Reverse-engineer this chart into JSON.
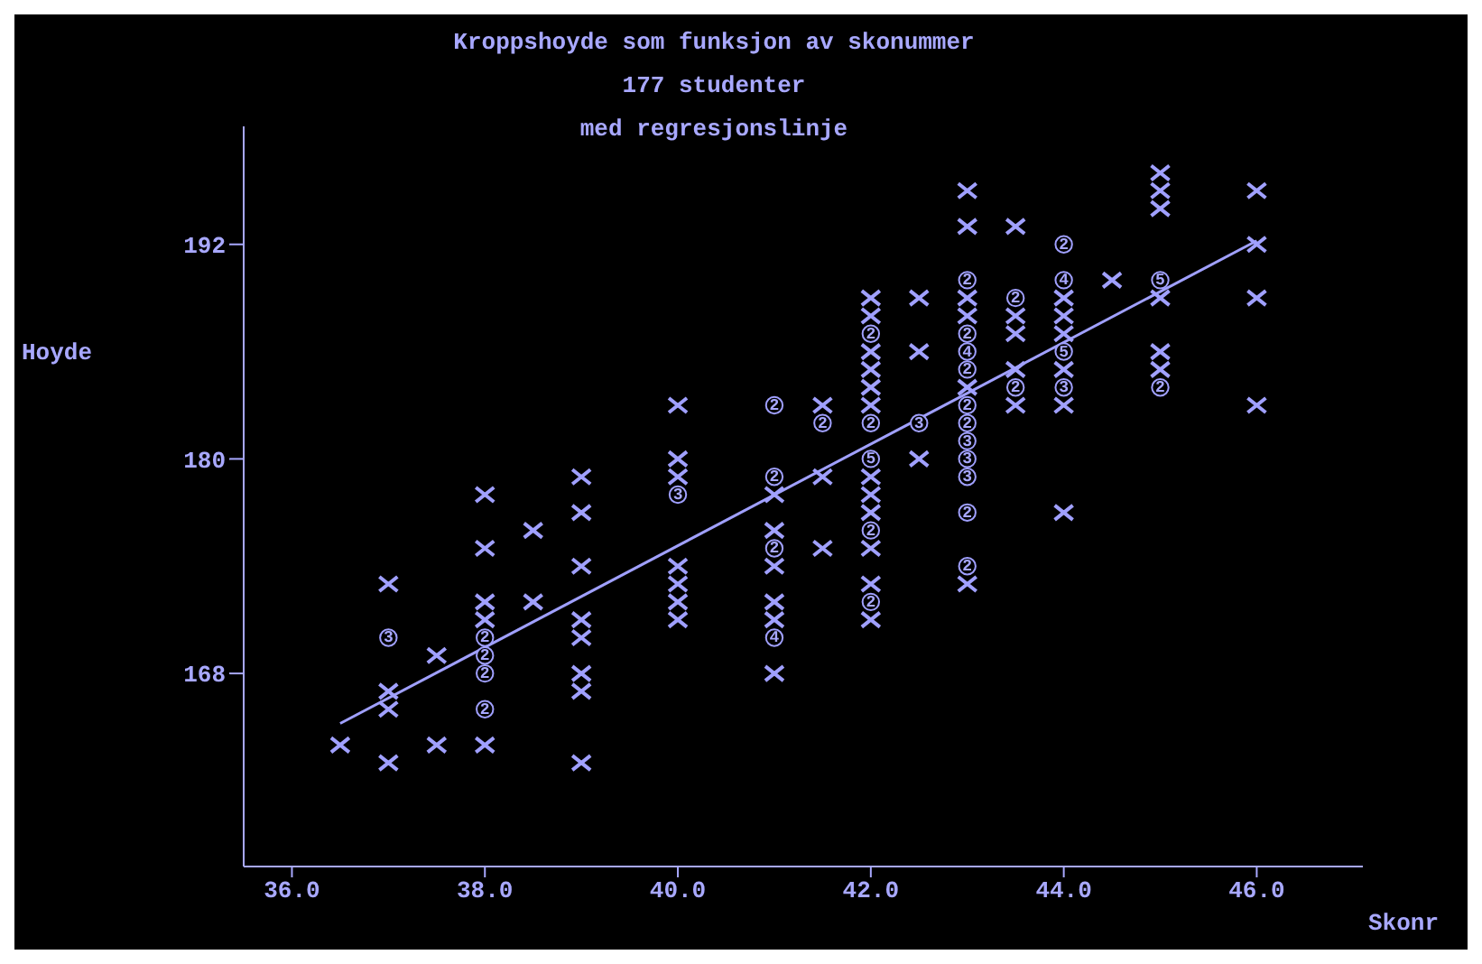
{
  "chart_data": {
    "type": "scatter",
    "title": "Kroppshoyde som funksjon av skonummer",
    "subtitle": "177 studenter",
    "xlabel": "Skonr",
    "ylabel": "Hoyde",
    "xlim": [
      35.5,
      47.1
    ],
    "ylim": [
      157.2,
      198.6
    ],
    "xticks": [
      {
        "value": 36,
        "label": "36.0"
      },
      {
        "value": 38,
        "label": "38.0"
      },
      {
        "value": 40,
        "label": "40.0"
      },
      {
        "value": 42,
        "label": "42.0"
      },
      {
        "value": 44,
        "label": "44.0"
      },
      {
        "value": 46,
        "label": "46.0"
      }
    ],
    "yticks": [
      168,
      180,
      192
    ],
    "grid": false,
    "legend": false,
    "annotations": [
      "med regresjonslinje",
      {
        "text": "3",
        "x": 37,
        "y": 170
      },
      {
        "text": "2",
        "x": 38,
        "y": 170
      },
      {
        "text": "2",
        "x": 38,
        "y": 169
      },
      {
        "text": "2",
        "x": 38,
        "y": 168
      },
      {
        "text": "2",
        "x": 38,
        "y": 166
      },
      {
        "text": "3",
        "x": 40,
        "y": 178
      },
      {
        "text": "2",
        "x": 41,
        "y": 183
      },
      {
        "text": "2",
        "x": 41,
        "y": 179
      },
      {
        "text": "2",
        "x": 41,
        "y": 175
      },
      {
        "text": "4",
        "x": 41,
        "y": 170
      },
      {
        "text": "2",
        "x": 41.5,
        "y": 182
      },
      {
        "text": "2",
        "x": 42,
        "y": 187
      },
      {
        "text": "2",
        "x": 42,
        "y": 182
      },
      {
        "text": "5",
        "x": 42,
        "y": 180
      },
      {
        "text": "2",
        "x": 42,
        "y": 176
      },
      {
        "text": "2",
        "x": 42,
        "y": 172
      },
      {
        "text": "3",
        "x": 42.5,
        "y": 182
      },
      {
        "text": "2",
        "x": 43,
        "y": 190
      },
      {
        "text": "2",
        "x": 43,
        "y": 187
      },
      {
        "text": "4",
        "x": 43,
        "y": 186
      },
      {
        "text": "2",
        "x": 43,
        "y": 185
      },
      {
        "text": "2",
        "x": 43,
        "y": 183
      },
      {
        "text": "2",
        "x": 43,
        "y": 182
      },
      {
        "text": "3",
        "x": 43,
        "y": 181
      },
      {
        "text": "3",
        "x": 43,
        "y": 180
      },
      {
        "text": "3",
        "x": 43,
        "y": 179
      },
      {
        "text": "2",
        "x": 43,
        "y": 177
      },
      {
        "text": "2",
        "x": 43,
        "y": 174
      },
      {
        "text": "2",
        "x": 43.5,
        "y": 189
      },
      {
        "text": "2",
        "x": 43.5,
        "y": 184
      },
      {
        "text": "2",
        "x": 44,
        "y": 192
      },
      {
        "text": "4",
        "x": 44,
        "y": 190
      },
      {
        "text": "5",
        "x": 44,
        "y": 186
      },
      {
        "text": "3",
        "x": 44,
        "y": 184
      },
      {
        "text": "5",
        "x": 45,
        "y": 190
      },
      {
        "text": "2",
        "x": 45,
        "y": 184
      }
    ],
    "series": [
      {
        "marker": "cross",
        "color": "#a0a0ff",
        "x": [
          36.5,
          37,
          37,
          37,
          37,
          37.5,
          37.5,
          38,
          38,
          38,
          38,
          38,
          38.5,
          38.5,
          39,
          39,
          39,
          39,
          39,
          39,
          39,
          39,
          40,
          40,
          40,
          40,
          40,
          40,
          40,
          41,
          41,
          41,
          41,
          41,
          41,
          41.5,
          41.5,
          41.5,
          42,
          42,
          42,
          42,
          42,
          42,
          42,
          42,
          42,
          42,
          42,
          42,
          42.5,
          42.5,
          42.5,
          43,
          43,
          43,
          43,
          43,
          43,
          43.5,
          43.5,
          43.5,
          43.5,
          43.5,
          44,
          44,
          44,
          44,
          44,
          44,
          44.5,
          45,
          45,
          45,
          45,
          45,
          45,
          46,
          46,
          46,
          46
        ],
        "values": [
          164,
          173,
          167,
          166,
          163,
          169,
          164,
          178,
          175,
          172,
          171,
          164,
          176,
          172,
          179,
          177,
          174,
          171,
          170,
          168,
          167,
          163,
          183,
          180,
          179,
          174,
          173,
          172,
          171,
          178,
          176,
          174,
          172,
          171,
          168,
          183,
          179,
          175,
          189,
          188,
          186,
          185,
          184,
          183,
          179,
          178,
          177,
          175,
          173,
          171,
          189,
          186,
          180,
          195,
          193,
          189,
          188,
          184,
          173,
          193,
          188,
          187,
          185,
          183,
          189,
          188,
          187,
          185,
          183,
          177,
          190,
          196,
          195,
          194,
          189,
          186,
          185,
          195,
          192,
          189,
          183
        ]
      },
      {
        "marker": "circle",
        "color": "#a0a0ff",
        "x": [
          37,
          38,
          38,
          38,
          38,
          40,
          41,
          41,
          41,
          41,
          41.5,
          42,
          42,
          42,
          42,
          42,
          42.5,
          43,
          43,
          43,
          43,
          43,
          43,
          43,
          43,
          43,
          43,
          43,
          43.5,
          43.5,
          44,
          44,
          44,
          44,
          45,
          45
        ],
        "values": [
          170,
          170,
          169,
          168,
          166,
          178,
          183,
          179,
          175,
          170,
          182,
          187,
          182,
          180,
          176,
          172,
          182,
          190,
          187,
          186,
          185,
          183,
          182,
          181,
          180,
          179,
          177,
          174,
          189,
          184,
          192,
          190,
          186,
          184,
          190,
          184
        ]
      },
      {
        "type": "line",
        "color": "#a0a0ff",
        "x": [
          36.5,
          46
        ],
        "values": [
          165.2,
          192.2
        ]
      }
    ]
  }
}
